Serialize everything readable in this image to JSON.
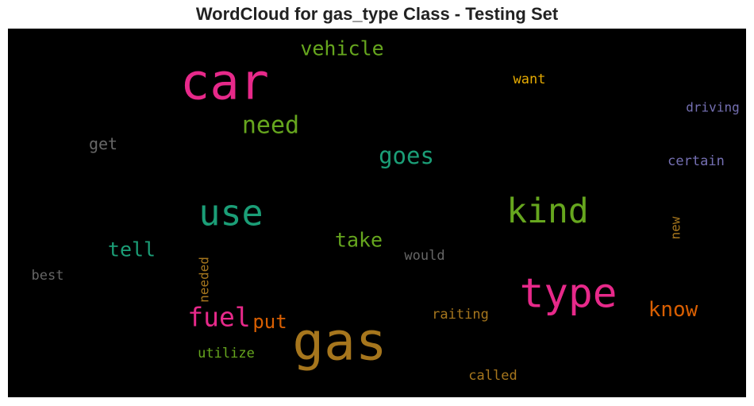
{
  "chart_data": {
    "type": "wordcloud",
    "title": "WordCloud for gas_type Class - Testing Set",
    "background": "#000000",
    "words": [
      {
        "text": "car",
        "color": "#e7298a"
      },
      {
        "text": "vehicle",
        "color": "#66a61e"
      },
      {
        "text": "want",
        "color": "#e6ab02"
      },
      {
        "text": "driving",
        "color": "#7570b3"
      },
      {
        "text": "need",
        "color": "#66a61e"
      },
      {
        "text": "get",
        "color": "#666666"
      },
      {
        "text": "goes",
        "color": "#1b9e77"
      },
      {
        "text": "certain",
        "color": "#7570b3"
      },
      {
        "text": "use",
        "color": "#1b9e77"
      },
      {
        "text": "kind",
        "color": "#66a61e"
      },
      {
        "text": "new",
        "color": "#a6761d"
      },
      {
        "text": "tell",
        "color": "#1b9e77"
      },
      {
        "text": "take",
        "color": "#66a61e"
      },
      {
        "text": "would",
        "color": "#666666"
      },
      {
        "text": "best",
        "color": "#666666"
      },
      {
        "text": "needed",
        "color": "#a6761d"
      },
      {
        "text": "type",
        "color": "#e7298a"
      },
      {
        "text": "know",
        "color": "#d95f02"
      },
      {
        "text": "fuel",
        "color": "#e7298a"
      },
      {
        "text": "put",
        "color": "#d95f02"
      },
      {
        "text": "gas",
        "color": "#a6761d"
      },
      {
        "text": "raiting",
        "color": "#a6761d"
      },
      {
        "text": "utilize",
        "color": "#66a61e"
      },
      {
        "text": "called",
        "color": "#a6761d"
      }
    ]
  }
}
